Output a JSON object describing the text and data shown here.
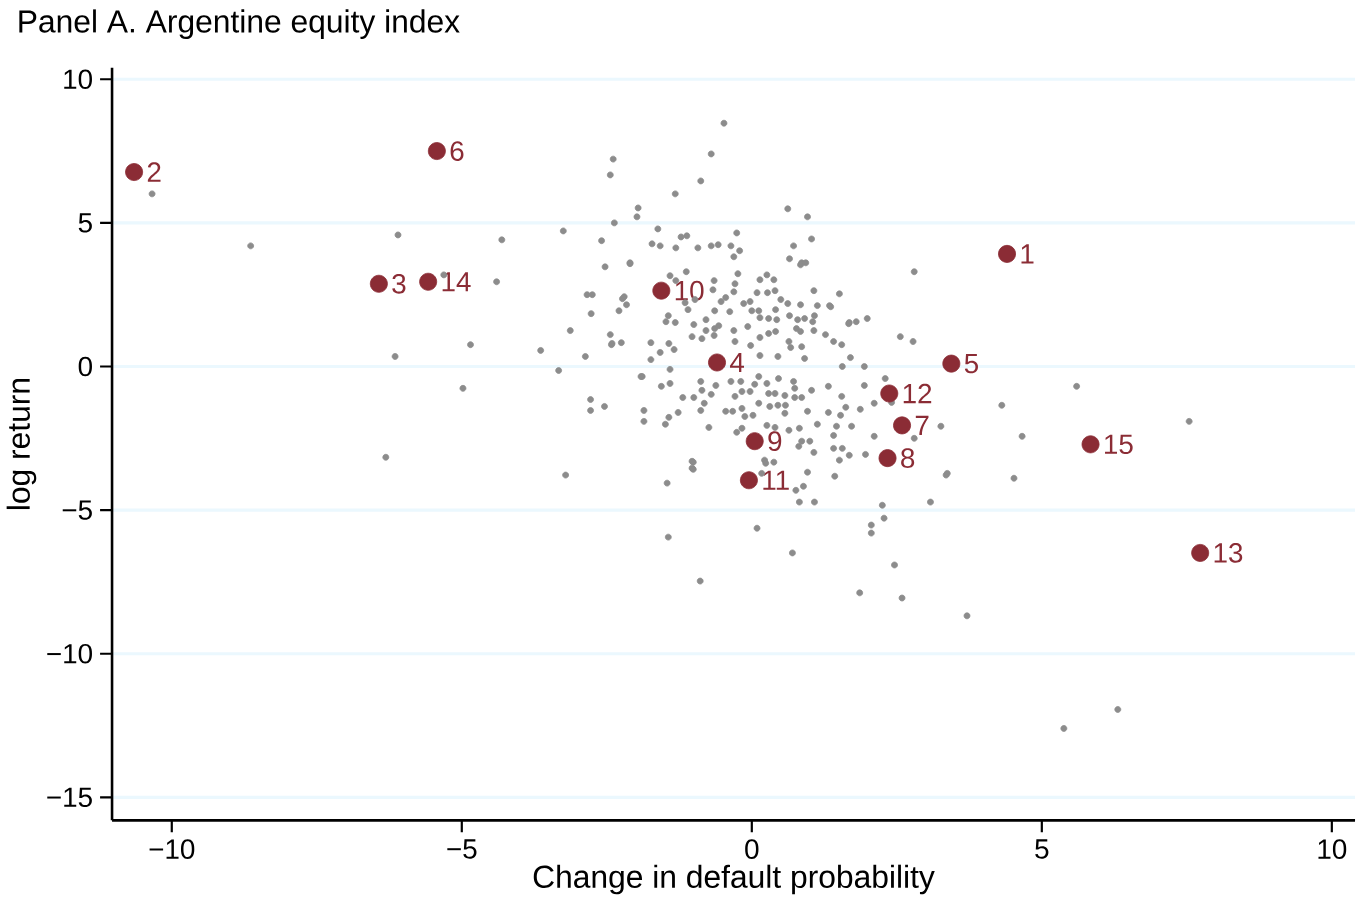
{
  "chart_data": {
    "type": "scatter",
    "title": "Panel A. Argentine equity index",
    "xlabel": "Change in default probability",
    "ylabel": "log return",
    "xlim": [
      -11.03,
      10.4
    ],
    "ylim": [
      -15.8,
      10.4
    ],
    "xticks": [
      {
        "value": -10,
        "label": "−10"
      },
      {
        "value": -5,
        "label": "−5"
      },
      0,
      5,
      10
    ],
    "yticks": [
      {
        "value": -15,
        "label": "−15"
      },
      {
        "value": -10,
        "label": "−10"
      },
      {
        "value": -5,
        "label": "−5"
      },
      0,
      5,
      10
    ],
    "grid": "y",
    "series": [
      {
        "color": "#8c8c8c",
        "x": [
          -10.34,
          -8.64,
          -6.1,
          -6.15,
          -6.31,
          -5.31,
          -4.85,
          -4.98,
          -4.4,
          -4.31,
          -3.64,
          -3.33,
          -3.25,
          -3.21,
          -3.13,
          -2.87,
          -2.78,
          -2.78,
          -2.54,
          -2.77,
          -2.53,
          -2.39,
          -2.44,
          -2.37,
          -1.96,
          -1.98,
          -2.1,
          -2.23,
          -2.41,
          -1.89,
          -1.86,
          -1.44,
          -1.46,
          -1.03,
          -1.03,
          -0.89,
          -1.32,
          -0.88,
          -0.7,
          -0.48,
          0.09,
          0.7,
          0.62,
          0.96,
          1.03,
          0.86,
          0.72,
          1.86,
          2.59,
          2.46,
          2.06,
          2.06,
          2.28,
          2.25,
          3.08,
          3.35,
          3.71,
          5.38,
          6.31,
          7.54,
          5.6,
          4.31,
          4.52,
          4.66,
          2.8,
          2.78,
          2.56,
          1.99,
          1.68,
          1.51,
          1.34,
          3.26,
          2.8,
          3.37,
          2.41,
          2.3,
          -2.59,
          -1.62,
          -1.22,
          -1.12,
          -1.72,
          -1.58,
          -1.31,
          -0.93,
          -0.7,
          -0.58,
          -0.36,
          -0.26,
          -0.21,
          -0.31,
          0.65,
          0.84,
          0.93,
          -2.1,
          -1.41,
          -1.31,
          -1.13,
          -0.65,
          -0.67,
          -0.24,
          -0.29,
          -0.31,
          0.14,
          0.26,
          0.38,
          0.09,
          0.27,
          0.4,
          0.5,
          0.62,
          0.84,
          1.07,
          1.13,
          1.36,
          1.67,
          1.8,
          -2.84,
          -2.75,
          -2.2,
          -2.16,
          -2.29,
          -2.44,
          -2.42,
          -2.25,
          -1.74,
          -1.43,
          -1.34,
          -1.74,
          -1.58,
          -1.44,
          -1.48,
          -1.32,
          -1.15,
          -1.1,
          -0.98,
          -1.0,
          -0.79,
          -0.64,
          -0.53,
          -0.45,
          -0.38,
          -0.14,
          -0.03,
          0.0,
          0.12,
          0.14,
          -0.07,
          -0.31,
          -0.64,
          -0.57,
          -0.79,
          -1.03,
          -0.86,
          -0.65,
          -0.29,
          -0.02,
          0.14,
          0.29,
          0.41,
          0.29,
          0.43,
          0.41,
          0.65,
          0.79,
          0.91,
          1.08,
          0.77,
          0.84,
          1.05,
          1.07,
          1.27,
          1.41,
          1.55,
          1.7,
          1.94,
          0.64,
          0.67,
          0.86,
          0.91,
          0.45,
          0.14,
          -1.41,
          -1.91,
          -1.56,
          -1.41,
          -1.86,
          -1.43,
          -1.27,
          -1.49,
          -1.19,
          -1.0,
          -0.88,
          -0.86,
          -0.7,
          -0.62,
          -0.82,
          -0.88,
          -0.74,
          -0.45,
          -0.33,
          -0.36,
          -0.19,
          -0.29,
          -0.17,
          -0.03,
          -0.17,
          -0.12,
          0.02,
          -0.26,
          -0.17,
          0.05,
          0.12,
          0.26,
          0.29,
          0.4,
          0.57,
          0.12,
          0.31,
          0.45,
          0.57,
          0.58,
          0.46,
          0.72,
          0.74,
          0.86,
          0.74,
          0.26,
          0.4,
          0.64,
          0.82,
          0.81,
          1.0,
          1.07,
          0.86,
          1.03,
          0.96,
          1.13,
          1.32,
          1.32,
          1.46,
          1.41,
          1.55,
          1.62,
          1.53,
          1.72,
          1.41,
          1.56,
          1.51,
          1.68,
          1.87,
          1.94,
          2.11,
          2.11,
          1.96,
          1.56,
          0.22,
          0.24,
          0.38,
          0.17,
          0.76,
          0.82,
          1.08,
          0.89,
          0.96,
          1.43,
          -1.01,
          -1.01
        ],
        "values": [
          6.01,
          4.2,
          4.58,
          0.35,
          -3.16,
          3.19,
          0.76,
          -0.76,
          2.95,
          4.41,
          0.56,
          -0.14,
          4.72,
          -3.78,
          1.25,
          0.35,
          -1.15,
          -1.53,
          -1.39,
          1.84,
          3.47,
          7.22,
          6.67,
          5.0,
          5.52,
          5.21,
          3.58,
          2.36,
          0.8,
          -0.35,
          -1.53,
          -5.94,
          -4.06,
          -3.3,
          -3.54,
          -7.47,
          6.01,
          6.46,
          7.4,
          8.47,
          -5.63,
          -6.49,
          5.49,
          5.21,
          4.44,
          3.61,
          4.2,
          -7.88,
          -8.06,
          -6.91,
          -5.52,
          -5.8,
          -5.28,
          -4.83,
          -4.72,
          -3.78,
          -8.68,
          -12.6,
          -11.94,
          -1.91,
          -0.69,
          -1.35,
          -3.89,
          -2.43,
          3.3,
          0.87,
          1.04,
          1.67,
          1.53,
          2.53,
          2.12,
          -2.08,
          -2.5,
          -3.72,
          -1.25,
          -0.42,
          4.38,
          4.79,
          4.51,
          4.55,
          4.27,
          4.2,
          4.13,
          4.13,
          4.2,
          4.24,
          4.2,
          4.65,
          4.03,
          3.82,
          3.75,
          3.54,
          3.61,
          3.61,
          3.16,
          2.99,
          3.3,
          2.99,
          2.67,
          3.23,
          2.88,
          2.6,
          3.02,
          3.19,
          3.02,
          2.57,
          2.57,
          2.64,
          2.33,
          2.19,
          2.15,
          2.64,
          2.12,
          2.08,
          1.49,
          1.56,
          2.5,
          2.5,
          2.43,
          2.15,
          1.94,
          1.11,
          0.76,
          0.83,
          0.83,
          0.8,
          0.59,
          0.24,
          0.49,
          1.77,
          1.56,
          1.53,
          2.22,
          1.98,
          2.33,
          1.46,
          1.63,
          1.94,
          2.26,
          2.4,
          1.91,
          2.19,
          2.26,
          1.94,
          1.94,
          1.7,
          1.39,
          1.25,
          1.32,
          1.42,
          1.25,
          1.04,
          0.97,
          1.08,
          0.87,
          0.73,
          1.01,
          1.15,
          1.22,
          1.67,
          1.63,
          1.98,
          1.77,
          1.63,
          1.67,
          1.77,
          1.32,
          1.22,
          1.56,
          1.25,
          1.11,
          0.87,
          0.76,
          0.31,
          0.0,
          0.87,
          0.66,
          0.69,
          0.28,
          0.35,
          0.38,
          -0.1,
          -0.35,
          -0.69,
          -0.59,
          -1.91,
          -1.77,
          -1.6,
          -2.01,
          -1.08,
          -1.08,
          -0.52,
          -0.83,
          -0.97,
          -0.66,
          -1.28,
          -1.53,
          -2.12,
          -1.56,
          -1.56,
          -0.52,
          -0.52,
          -1.04,
          -0.87,
          -0.87,
          -1.46,
          -1.74,
          -1.7,
          -2.29,
          -2.15,
          -0.62,
          -0.35,
          -0.59,
          -0.94,
          -0.94,
          -1.01,
          -1.28,
          -1.39,
          -1.35,
          -1.63,
          -1.35,
          -0.42,
          -0.52,
          -0.76,
          -1.08,
          -1.08,
          -2.05,
          -2.12,
          -2.22,
          -2.15,
          -2.78,
          -2.6,
          -2.99,
          -2.6,
          -0.83,
          -1.56,
          -2.01,
          -0.69,
          -1.6,
          -2.08,
          -2.4,
          -1.04,
          -1.42,
          -1.7,
          -2.08,
          -2.85,
          -2.85,
          -3.26,
          -3.09,
          -1.49,
          -0.66,
          -2.43,
          -1.28,
          -3.06,
          0.0,
          -3.26,
          -3.37,
          -3.33,
          -3.72,
          -4.31,
          -4.72,
          -4.72,
          -4.17,
          -3.68,
          -3.82,
          -3.33,
          -3.58
        ]
      },
      {
        "color": "#8b2c35",
        "x": [
          4.4,
          -10.65,
          -6.43,
          -0.6,
          3.44,
          -5.43,
          2.59,
          2.34,
          0.05,
          -1.56,
          -0.05,
          2.37,
          7.73,
          -5.58,
          5.84
        ],
        "values": [
          3.92,
          6.77,
          2.88,
          0.14,
          0.1,
          7.5,
          -2.05,
          -3.19,
          -2.6,
          2.64,
          -3.96,
          -0.94,
          -6.49,
          2.95,
          -2.71
        ]
      }
    ],
    "annotations": [
      {
        "text": "1",
        "x": 4.4,
        "y": 3.92
      },
      {
        "text": "2",
        "x": -10.65,
        "y": 6.77
      },
      {
        "text": "3",
        "x": -6.43,
        "y": 2.88
      },
      {
        "text": "4",
        "x": -0.6,
        "y": 0.14
      },
      {
        "text": "5",
        "x": 3.44,
        "y": 0.1
      },
      {
        "text": "6",
        "x": -5.43,
        "y": 7.5
      },
      {
        "text": "7",
        "x": 2.59,
        "y": -2.05
      },
      {
        "text": "8",
        "x": 2.34,
        "y": -3.19
      },
      {
        "text": "9",
        "x": 0.05,
        "y": -2.6
      },
      {
        "text": "10",
        "x": -1.56,
        "y": 2.64
      },
      {
        "text": "11",
        "x": -0.05,
        "y": -3.96
      },
      {
        "text": "12",
        "x": 2.37,
        "y": -0.94
      },
      {
        "text": "13",
        "x": 7.73,
        "y": -6.49
      },
      {
        "text": "14",
        "x": -5.58,
        "y": 2.95
      },
      {
        "text": "15",
        "x": 5.84,
        "y": -2.71
      }
    ]
  }
}
